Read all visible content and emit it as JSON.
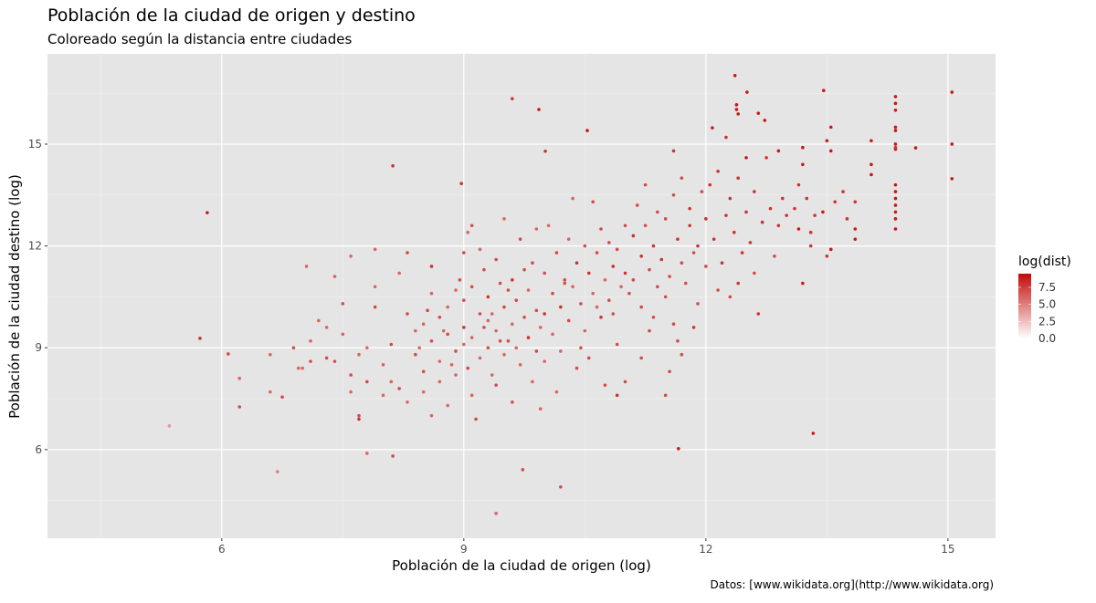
{
  "chart_data": {
    "type": "scatter",
    "title": "Población de la ciudad de origen y destino",
    "subtitle": "Coloreado según la distancia entre ciudades",
    "xlabel": "Población de la ciudad de origen (log)",
    "ylabel": "Población de la ciudad destino (log)",
    "caption": "Datos: [www.wikidata.org](http://www.wikidata.org)",
    "xlim": [
      3.84,
      15.59
    ],
    "ylim": [
      3.39,
      17.66
    ],
    "x_ticks": [
      6,
      9,
      12,
      15
    ],
    "y_ticks": [
      6,
      9,
      12,
      15
    ],
    "x_tick_labels": [
      "6",
      "9",
      "12",
      "15"
    ],
    "y_tick_labels": [
      "6",
      "9",
      "12",
      "15"
    ],
    "grid": true,
    "background": "#e5e5e5",
    "legend": {
      "title": "log(dist)",
      "position": "right",
      "range": [
        0,
        9.5
      ],
      "ticks": [
        0,
        2.5,
        5,
        7.5
      ],
      "tick_labels": [
        "0.0",
        "2.5",
        "5.0",
        "7.5"
      ],
      "low_color": "#ffffff",
      "high_color": "#c40a0a"
    },
    "point_fields": [
      "x",
      "y",
      "log_dist"
    ],
    "points": [
      [
        5.35,
        6.7,
        4
      ],
      [
        5.73,
        9.28,
        8
      ],
      [
        5.82,
        12.98,
        9
      ],
      [
        6.08,
        8.82,
        7
      ],
      [
        6.22,
        8.1,
        6
      ],
      [
        6.22,
        7.26,
        7
      ],
      [
        6.69,
        5.35,
        5
      ],
      [
        6.89,
        9.0,
        7
      ],
      [
        7.05,
        11.4,
        6
      ],
      [
        8.12,
        14.36,
        8
      ],
      [
        8.12,
        5.81,
        7
      ],
      [
        7.8,
        5.89,
        6
      ],
      [
        8.97,
        13.84,
        8
      ],
      [
        9.6,
        16.34,
        8
      ],
      [
        9.93,
        16.02,
        9
      ],
      [
        10.01,
        14.79,
        8
      ],
      [
        10.53,
        15.4,
        9
      ],
      [
        9.73,
        5.41,
        7
      ],
      [
        10.2,
        4.9,
        7
      ],
      [
        9.4,
        4.12,
        6
      ],
      [
        11.66,
        6.03,
        9
      ],
      [
        12.36,
        17.02,
        9
      ],
      [
        12.51,
        16.53,
        9
      ],
      [
        12.38,
        16.16,
        9
      ],
      [
        12.38,
        16.02,
        9
      ],
      [
        12.4,
        15.89,
        9
      ],
      [
        13.33,
        6.48,
        9
      ],
      [
        13.46,
        16.58,
        9
      ],
      [
        15.05,
        16.53,
        9
      ],
      [
        15.05,
        15.0,
        9
      ],
      [
        15.05,
        13.98,
        9
      ],
      [
        14.6,
        14.89,
        9
      ],
      [
        12.08,
        15.48,
        9
      ],
      [
        12.65,
        15.91,
        9
      ],
      [
        12.73,
        15.7,
        9
      ],
      [
        6.6,
        8.8,
        6
      ],
      [
        6.6,
        7.7,
        6
      ],
      [
        6.75,
        7.55,
        7
      ],
      [
        6.95,
        8.4,
        6
      ],
      [
        7.1,
        8.6,
        7
      ],
      [
        7.2,
        9.8,
        6
      ],
      [
        7.3,
        9.6,
        6
      ],
      [
        7.4,
        8.6,
        7
      ],
      [
        7.5,
        9.4,
        6
      ],
      [
        7.6,
        8.2,
        7
      ],
      [
        7.6,
        7.7,
        6
      ],
      [
        7.7,
        7.0,
        7
      ],
      [
        7.7,
        6.9,
        8
      ],
      [
        7.8,
        9.0,
        6
      ],
      [
        7.8,
        8.0,
        7
      ],
      [
        7.9,
        10.8,
        6
      ],
      [
        7.9,
        11.9,
        6
      ],
      [
        7.9,
        10.2,
        7
      ],
      [
        8.0,
        8.5,
        6
      ],
      [
        8.0,
        7.6,
        6
      ],
      [
        8.1,
        9.1,
        7
      ],
      [
        8.1,
        8.0,
        6
      ],
      [
        8.2,
        7.8,
        7
      ],
      [
        8.2,
        11.2,
        6
      ],
      [
        7.4,
        11.1,
        6
      ],
      [
        7.5,
        10.3,
        7
      ],
      [
        7.1,
        9.2,
        6
      ],
      [
        7.0,
        8.4,
        6
      ],
      [
        7.3,
        8.7,
        7
      ],
      [
        7.6,
        11.7,
        6
      ],
      [
        7.7,
        8.8,
        6
      ],
      [
        8.3,
        10.0,
        7
      ],
      [
        8.3,
        11.8,
        7
      ],
      [
        8.3,
        7.4,
        6
      ],
      [
        8.4,
        9.5,
        6
      ],
      [
        8.4,
        8.8,
        7
      ],
      [
        8.5,
        9.7,
        6
      ],
      [
        8.5,
        8.3,
        7
      ],
      [
        8.5,
        7.7,
        6
      ],
      [
        8.6,
        10.6,
        6
      ],
      [
        8.6,
        9.2,
        7
      ],
      [
        8.6,
        11.4,
        8
      ],
      [
        8.7,
        8.0,
        6
      ],
      [
        8.7,
        9.9,
        7
      ],
      [
        8.7,
        8.6,
        6
      ],
      [
        8.8,
        10.2,
        6
      ],
      [
        8.8,
        9.4,
        7
      ],
      [
        8.8,
        7.3,
        6
      ],
      [
        8.9,
        8.9,
        7
      ],
      [
        8.9,
        10.7,
        6
      ],
      [
        8.9,
        8.2,
        6
      ],
      [
        9.0,
        11.8,
        7
      ],
      [
        9.0,
        9.6,
        8
      ],
      [
        9.0,
        9.1,
        6
      ],
      [
        9.0,
        10.4,
        7
      ],
      [
        8.6,
        7.0,
        6
      ],
      [
        8.45,
        9.0,
        6
      ],
      [
        8.55,
        10.1,
        7
      ],
      [
        8.75,
        9.5,
        6
      ],
      [
        8.85,
        8.5,
        6
      ],
      [
        8.95,
        11.0,
        7
      ],
      [
        9.05,
        12.4,
        6
      ],
      [
        9.05,
        8.4,
        7
      ],
      [
        9.1,
        10.8,
        7
      ],
      [
        9.1,
        9.3,
        6
      ],
      [
        9.1,
        7.6,
        6
      ],
      [
        9.15,
        6.9,
        7
      ],
      [
        9.2,
        10.0,
        7
      ],
      [
        9.2,
        8.7,
        6
      ],
      [
        9.25,
        11.3,
        7
      ],
      [
        9.3,
        9.8,
        6
      ],
      [
        9.3,
        9.0,
        7
      ],
      [
        9.3,
        10.5,
        8
      ],
      [
        9.35,
        8.2,
        6
      ],
      [
        9.4,
        11.6,
        7
      ],
      [
        9.4,
        9.5,
        6
      ],
      [
        9.45,
        10.9,
        7
      ],
      [
        9.5,
        8.8,
        6
      ],
      [
        9.5,
        10.2,
        7
      ],
      [
        9.5,
        12.8,
        6
      ],
      [
        9.55,
        9.2,
        7
      ],
      [
        9.6,
        11.0,
        8
      ],
      [
        9.6,
        9.7,
        6
      ],
      [
        9.6,
        7.4,
        7
      ],
      [
        9.65,
        10.4,
        7
      ],
      [
        9.7,
        12.2,
        7
      ],
      [
        9.7,
        8.5,
        6
      ],
      [
        9.75,
        9.9,
        7
      ],
      [
        9.8,
        10.7,
        6
      ],
      [
        9.8,
        9.3,
        8
      ],
      [
        9.85,
        11.5,
        7
      ],
      [
        9.85,
        8.0,
        6
      ],
      [
        9.9,
        10.1,
        7
      ],
      [
        9.9,
        12.5,
        6
      ],
      [
        9.95,
        9.6,
        6
      ],
      [
        9.95,
        7.2,
        6
      ],
      [
        10.0,
        11.2,
        7
      ],
      [
        10.0,
        10.0,
        8
      ],
      [
        10.0,
        8.6,
        6
      ],
      [
        9.2,
        11.9,
        6
      ],
      [
        9.4,
        7.9,
        7
      ],
      [
        9.55,
        10.7,
        7
      ],
      [
        9.75,
        11.3,
        7
      ],
      [
        9.65,
        9.0,
        6
      ],
      [
        9.35,
        10.0,
        6
      ],
      [
        9.45,
        9.2,
        7
      ],
      [
        9.25,
        9.6,
        7
      ],
      [
        9.9,
        8.9,
        7
      ],
      [
        9.1,
        12.6,
        7
      ],
      [
        10.05,
        12.6,
        6
      ],
      [
        10.1,
        10.6,
        7
      ],
      [
        10.1,
        9.4,
        6
      ],
      [
        10.15,
        11.8,
        7
      ],
      [
        10.2,
        10.2,
        8
      ],
      [
        10.2,
        8.9,
        6
      ],
      [
        10.25,
        11.0,
        7
      ],
      [
        10.3,
        12.2,
        6
      ],
      [
        10.3,
        9.8,
        7
      ],
      [
        10.35,
        10.8,
        6
      ],
      [
        10.4,
        11.5,
        8
      ],
      [
        10.4,
        8.4,
        7
      ],
      [
        10.45,
        10.3,
        7
      ],
      [
        10.5,
        12.0,
        7
      ],
      [
        10.5,
        9.5,
        6
      ],
      [
        10.55,
        11.2,
        8
      ],
      [
        10.6,
        10.6,
        6
      ],
      [
        10.6,
        13.3,
        7
      ],
      [
        10.65,
        11.8,
        7
      ],
      [
        10.7,
        9.9,
        8
      ],
      [
        10.7,
        12.5,
        7
      ],
      [
        10.75,
        11.0,
        6
      ],
      [
        10.8,
        10.4,
        7
      ],
      [
        10.8,
        12.1,
        7
      ],
      [
        10.85,
        11.4,
        8
      ],
      [
        10.9,
        9.1,
        7
      ],
      [
        10.9,
        11.9,
        7
      ],
      [
        10.95,
        10.8,
        6
      ],
      [
        11.0,
        12.6,
        7
      ],
      [
        11.0,
        11.2,
        8
      ],
      [
        11.0,
        8.0,
        7
      ],
      [
        10.15,
        7.7,
        6
      ],
      [
        10.35,
        13.4,
        6
      ],
      [
        10.55,
        8.7,
        7
      ],
      [
        10.75,
        7.9,
        7
      ],
      [
        10.9,
        7.6,
        8
      ],
      [
        10.45,
        9.0,
        7
      ],
      [
        10.65,
        10.2,
        6
      ],
      [
        10.25,
        10.9,
        7
      ],
      [
        10.85,
        10.0,
        7
      ],
      [
        11.05,
        10.6,
        7
      ],
      [
        11.1,
        12.3,
        8
      ],
      [
        11.1,
        11.0,
        7
      ],
      [
        11.15,
        13.2,
        7
      ],
      [
        11.2,
        11.7,
        8
      ],
      [
        11.2,
        10.2,
        7
      ],
      [
        11.25,
        12.6,
        7
      ],
      [
        11.3,
        11.3,
        7
      ],
      [
        11.3,
        9.5,
        7
      ],
      [
        11.35,
        12.0,
        8
      ],
      [
        11.4,
        13.0,
        7
      ],
      [
        11.4,
        10.8,
        7
      ],
      [
        11.45,
        11.6,
        8
      ],
      [
        11.5,
        12.8,
        7
      ],
      [
        11.5,
        10.5,
        7
      ],
      [
        11.55,
        11.1,
        7
      ],
      [
        11.6,
        13.5,
        7
      ],
      [
        11.6,
        9.7,
        7
      ],
      [
        11.65,
        12.2,
        8
      ],
      [
        11.7,
        11.5,
        7
      ],
      [
        11.7,
        14.0,
        7
      ],
      [
        11.75,
        10.9,
        7
      ],
      [
        11.8,
        12.6,
        8
      ],
      [
        11.8,
        13.1,
        8
      ],
      [
        11.85,
        11.8,
        7
      ],
      [
        11.9,
        10.3,
        7
      ],
      [
        11.9,
        12.0,
        8
      ],
      [
        11.95,
        13.6,
        7
      ],
      [
        12.0,
        11.4,
        7
      ],
      [
        12.0,
        12.8,
        8
      ],
      [
        11.5,
        7.6,
        7
      ],
      [
        11.55,
        8.3,
        7
      ],
      [
        11.7,
        8.8,
        7
      ],
      [
        11.2,
        8.7,
        7
      ],
      [
        11.35,
        9.9,
        7
      ],
      [
        11.6,
        14.8,
        8
      ],
      [
        11.25,
        13.8,
        7
      ],
      [
        11.85,
        9.6,
        8
      ],
      [
        11.65,
        9.2,
        7
      ],
      [
        12.05,
        13.8,
        8
      ],
      [
        12.1,
        12.2,
        8
      ],
      [
        12.15,
        14.2,
        8
      ],
      [
        12.2,
        11.5,
        8
      ],
      [
        12.25,
        12.9,
        8
      ],
      [
        12.3,
        13.4,
        8
      ],
      [
        12.3,
        10.5,
        7
      ],
      [
        12.35,
        12.4,
        8
      ],
      [
        12.4,
        14.0,
        8
      ],
      [
        12.45,
        11.8,
        8
      ],
      [
        12.5,
        13.0,
        8
      ],
      [
        12.55,
        12.1,
        8
      ],
      [
        12.6,
        13.6,
        8
      ],
      [
        12.6,
        11.2,
        7
      ],
      [
        12.7,
        12.7,
        8
      ],
      [
        12.75,
        14.6,
        8
      ],
      [
        12.8,
        13.1,
        8
      ],
      [
        12.85,
        11.7,
        7
      ],
      [
        12.9,
        12.6,
        8
      ],
      [
        12.95,
        13.4,
        8
      ],
      [
        13.0,
        12.9,
        8
      ],
      [
        12.15,
        10.7,
        7
      ],
      [
        12.4,
        10.9,
        8
      ],
      [
        12.65,
        10.0,
        8
      ],
      [
        12.25,
        15.2,
        8
      ],
      [
        12.5,
        14.6,
        9
      ],
      [
        12.9,
        14.8,
        9
      ],
      [
        13.1,
        13.1,
        8
      ],
      [
        13.15,
        12.5,
        9
      ],
      [
        13.2,
        14.4,
        9
      ],
      [
        13.2,
        10.9,
        9
      ],
      [
        13.25,
        13.4,
        8
      ],
      [
        13.3,
        12.0,
        8
      ],
      [
        13.35,
        12.9,
        8
      ],
      [
        13.45,
        13.0,
        9
      ],
      [
        13.5,
        11.7,
        8
      ],
      [
        13.5,
        15.1,
        9
      ],
      [
        13.55,
        14.8,
        9
      ],
      [
        13.55,
        11.9,
        9
      ],
      [
        13.6,
        13.3,
        8
      ],
      [
        13.7,
        13.6,
        8
      ],
      [
        13.85,
        13.3,
        8
      ],
      [
        13.85,
        12.5,
        9
      ],
      [
        13.85,
        12.2,
        9
      ],
      [
        14.05,
        14.4,
        9
      ],
      [
        14.05,
        14.1,
        9
      ],
      [
        14.05,
        15.1,
        9
      ],
      [
        13.2,
        14.9,
        9
      ],
      [
        13.3,
        12.4,
        8
      ],
      [
        13.15,
        13.8,
        8
      ],
      [
        13.55,
        15.5,
        9
      ],
      [
        13.75,
        12.8,
        8
      ],
      [
        14.35,
        16.4,
        9
      ],
      [
        14.35,
        16.2,
        9
      ],
      [
        14.35,
        16.0,
        9
      ],
      [
        14.35,
        15.5,
        9
      ],
      [
        14.35,
        15.4,
        9
      ],
      [
        14.35,
        15.0,
        9
      ],
      [
        14.35,
        14.85,
        9
      ],
      [
        14.35,
        13.8,
        9
      ],
      [
        14.35,
        13.6,
        9
      ],
      [
        14.35,
        13.4,
        9
      ],
      [
        14.35,
        13.2,
        9
      ],
      [
        14.35,
        13.0,
        9
      ],
      [
        14.35,
        12.8,
        9
      ],
      [
        14.35,
        12.5,
        9
      ],
      [
        14.35,
        14.9,
        8
      ]
    ]
  }
}
